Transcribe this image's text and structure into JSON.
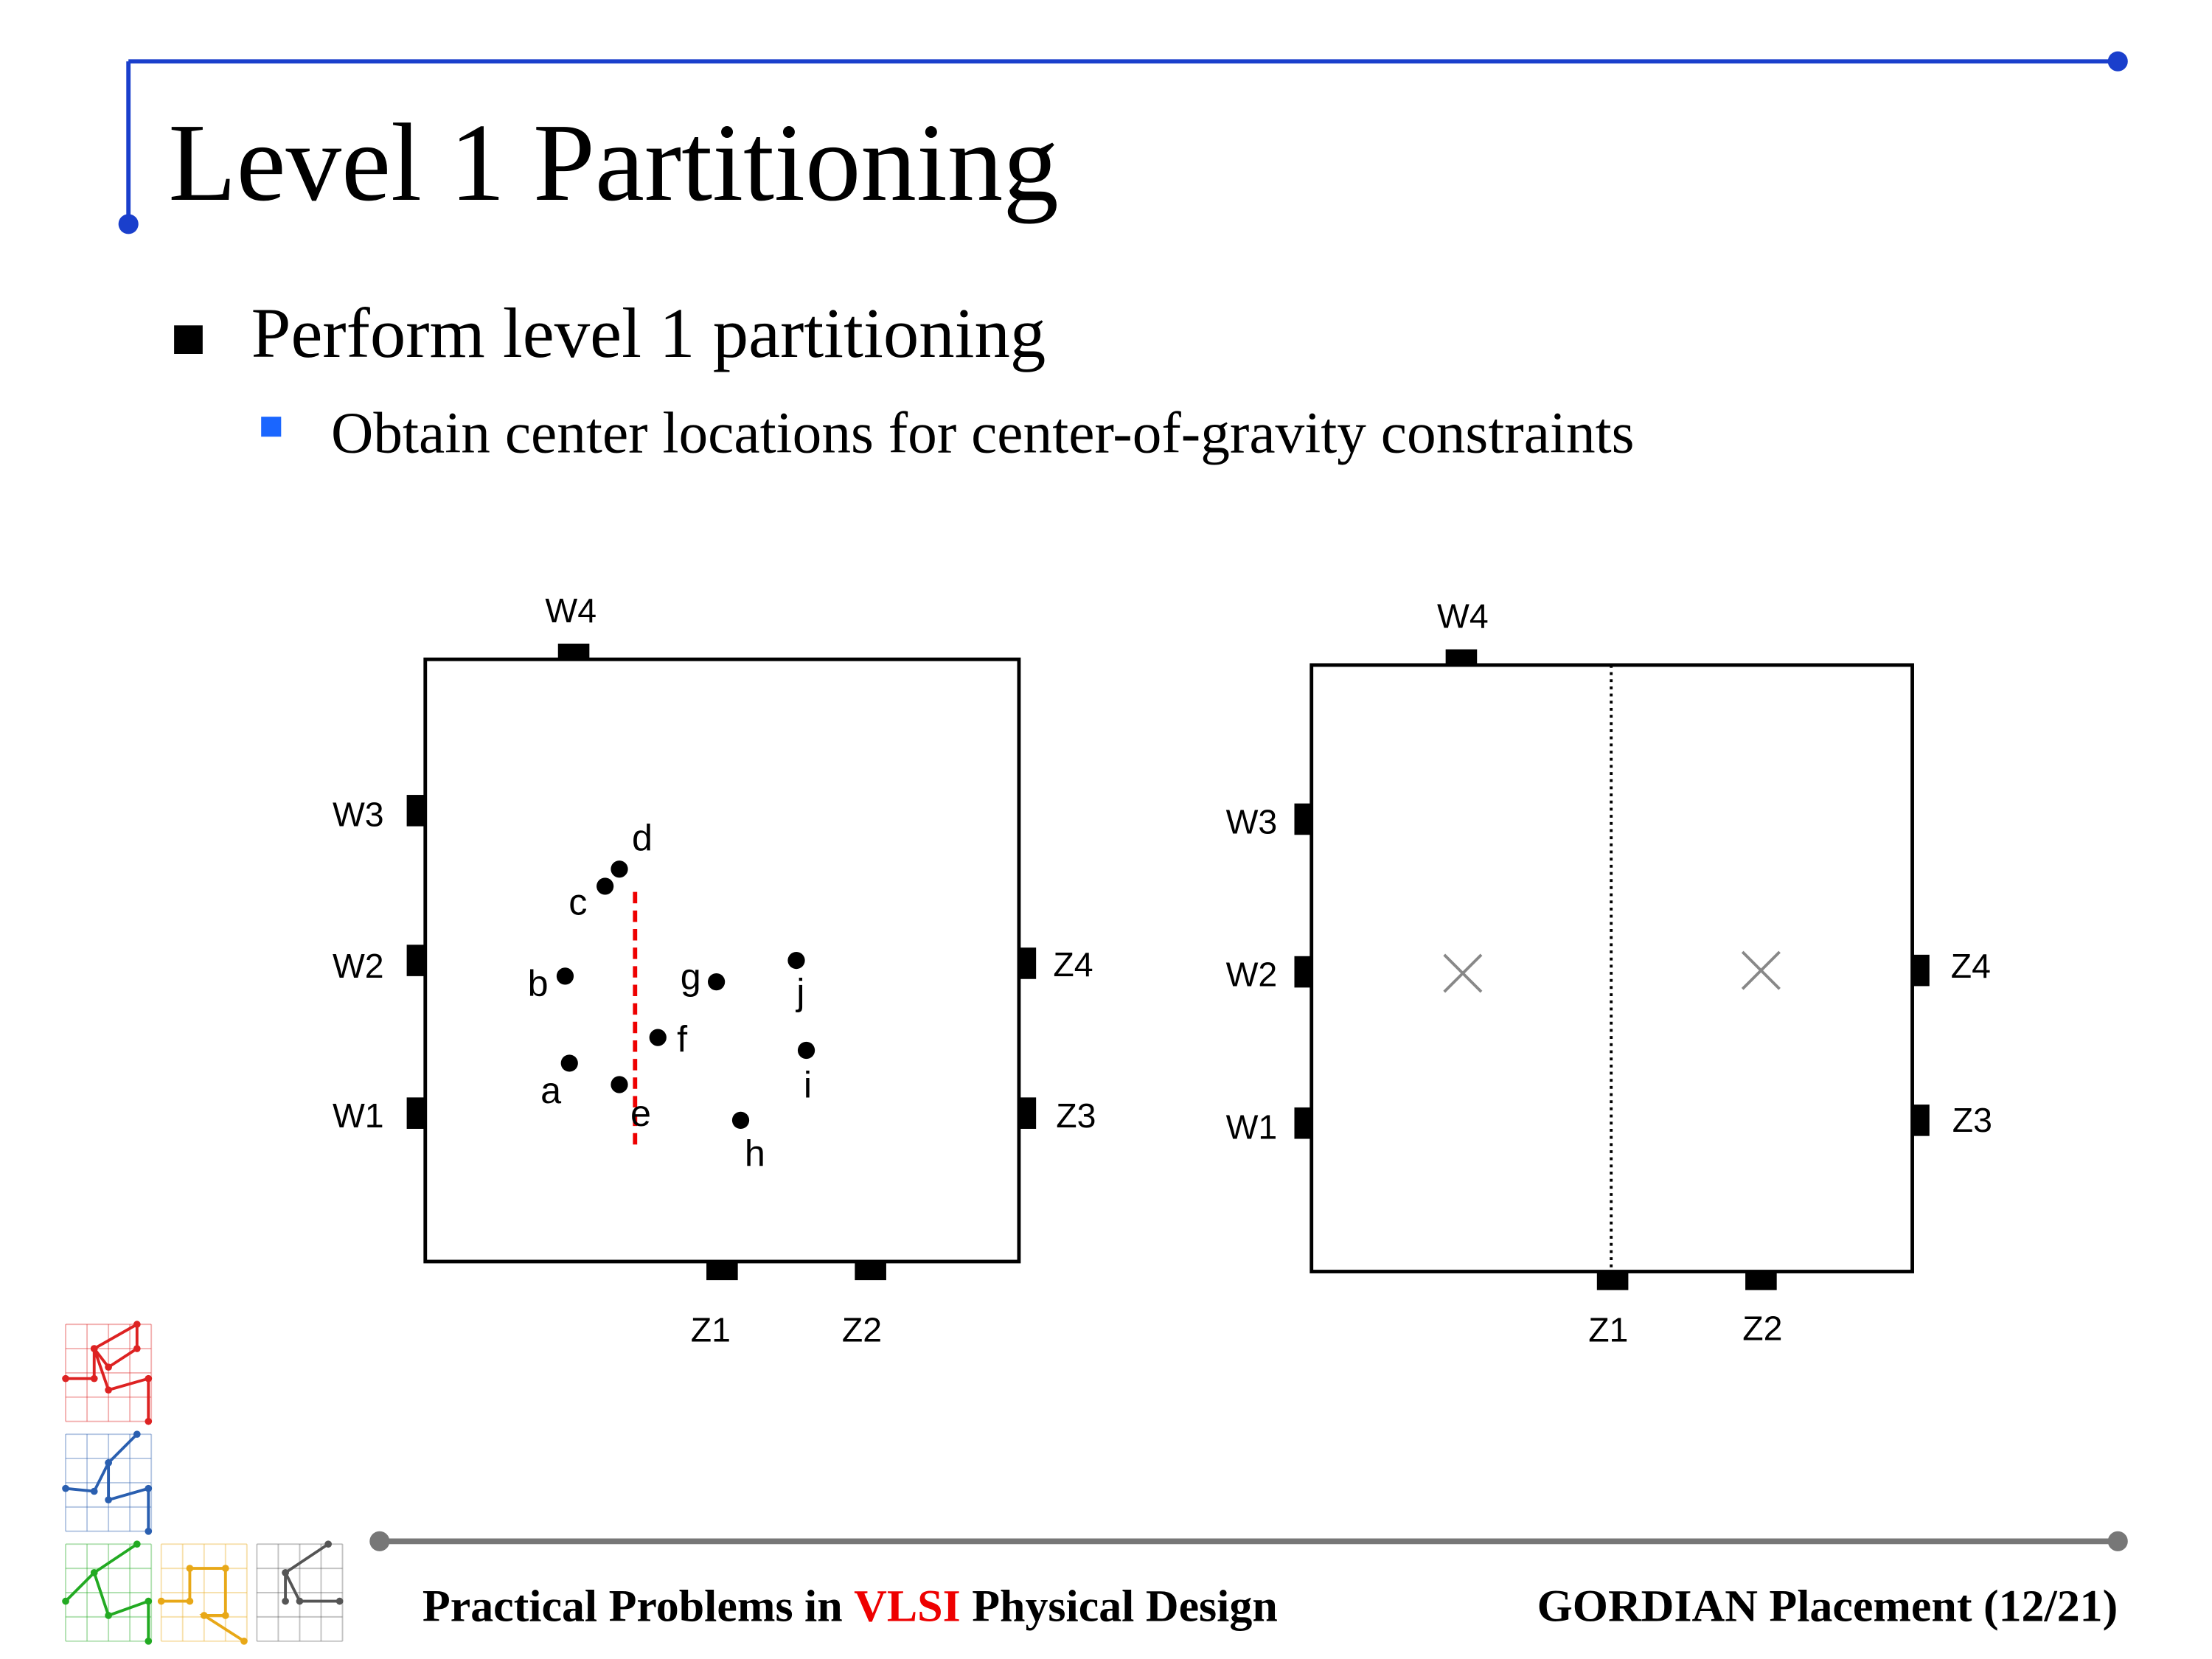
{
  "header": {
    "title": "Level 1 Partitioning"
  },
  "bullets": [
    {
      "text": "Perform level 1 partitioning",
      "sub": [
        "Obtain center locations for center-of-gravity constraints"
      ]
    }
  ],
  "figures": [
    {
      "pins": [
        "W4",
        "W3",
        "W2",
        "W1",
        "Z4",
        "Z3",
        "Z1",
        "Z2"
      ],
      "nodes": [
        "a",
        "b",
        "c",
        "d",
        "e",
        "f",
        "g",
        "h",
        "i",
        "j"
      ]
    },
    {
      "pins": [
        "W4",
        "W3",
        "W2",
        "W1",
        "Z4",
        "Z3",
        "Z1",
        "Z2"
      ]
    }
  ],
  "footer": {
    "left": [
      "Practical Problems in ",
      "VLSI",
      " Physical Design"
    ],
    "right": "GORDIAN Placement (12/21)"
  }
}
